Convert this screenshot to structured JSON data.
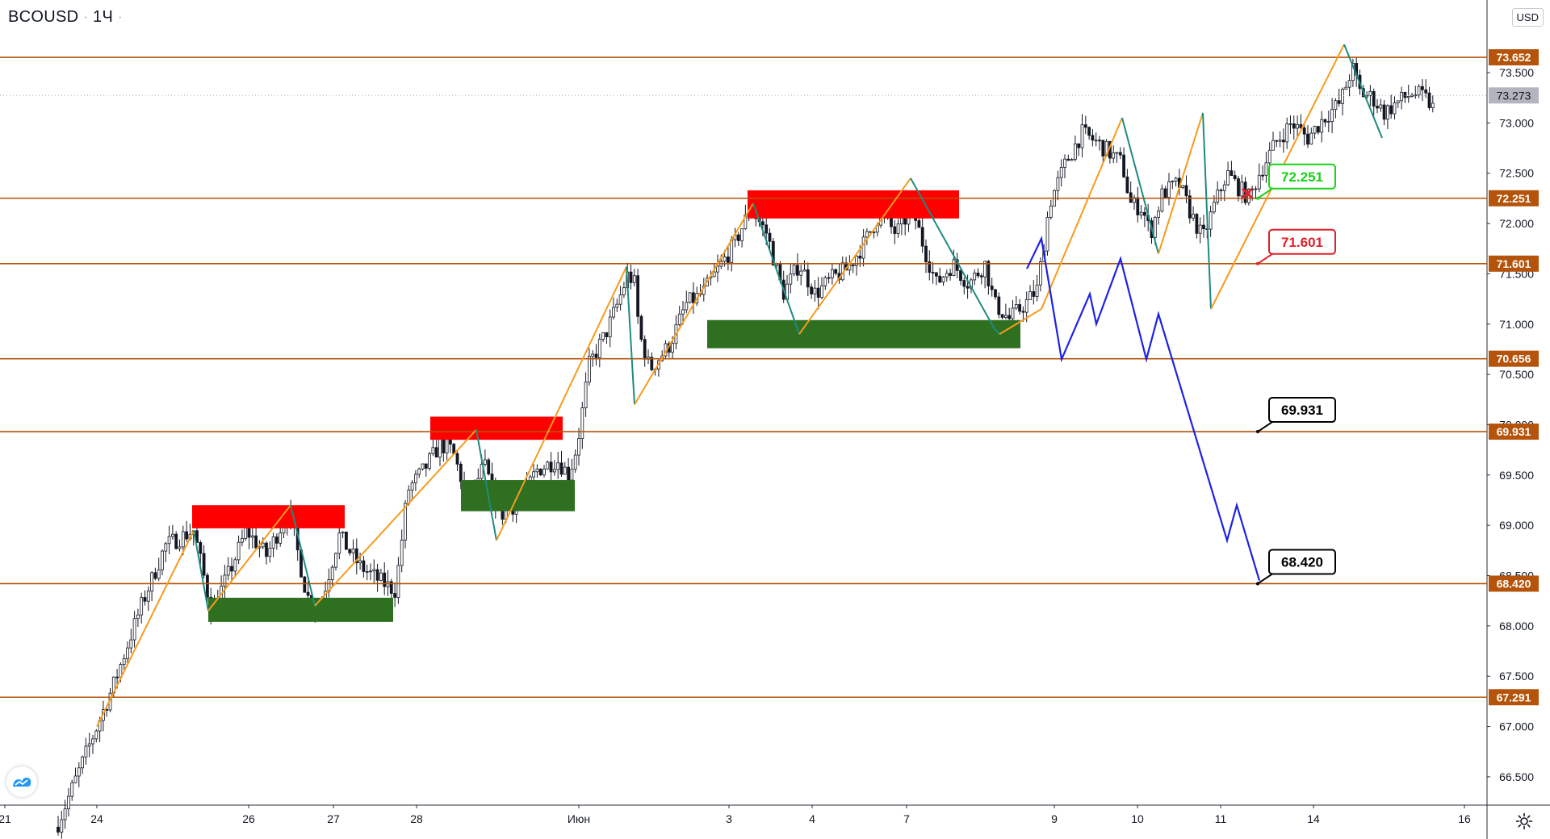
{
  "symbol": {
    "name": "BCOUSD",
    "interval": "1Ч"
  },
  "currency": "USD",
  "colors": {
    "level": "#b45309",
    "zigzag_up": "#f89a1c",
    "zigzag_down": "#1f8a80",
    "forecast": "#1e22e6",
    "resist_zone": "#ff0000",
    "support_zone": "#2e7020",
    "candle": "#131722",
    "bull_tag": "#19d119",
    "bear_tag": "#e0202a",
    "target_tag": "#000000",
    "current_price_tag": "#b2b5be"
  },
  "chart_data": {
    "type": "candlestick",
    "y_range": [
      66.2,
      74.4
    ],
    "y_ticks": [
      "73.500",
      "73.000",
      "72.500",
      "72.000",
      "71.500",
      "71.000",
      "70.500",
      "70.000",
      "69.500",
      "69.000",
      "68.500",
      "68.000",
      "67.500",
      "67.000",
      "66.500"
    ],
    "x_ticks": [
      "21",
      "24",
      "26",
      "27",
      "28",
      "Июн",
      "3",
      "4",
      "7",
      "9",
      "10",
      "11",
      "14",
      "16"
    ],
    "levels": [
      73.652,
      72.251,
      71.601,
      70.656,
      69.931,
      68.42,
      67.291
    ],
    "level_labels": [
      "73.652",
      "72.251",
      "71.601",
      "70.656",
      "69.931",
      "68.420",
      "67.291"
    ],
    "current_price": {
      "label": "73.273",
      "value": 73.273
    },
    "annotations": [
      {
        "text": "72.251",
        "value": 72.251,
        "style": "bull"
      },
      {
        "text": "71.601",
        "value": 71.601,
        "style": "bear"
      },
      {
        "text": "69.931",
        "value": 69.931,
        "style": "target"
      },
      {
        "text": "68.420",
        "value": 68.42,
        "style": "target"
      }
    ],
    "resistance_zones": [
      {
        "from": 68.97,
        "to": 69.2
      },
      {
        "from": 69.85,
        "to": 70.08
      },
      {
        "from": 72.05,
        "to": 72.33
      }
    ],
    "support_zones": [
      {
        "from": 68.04,
        "to": 68.28
      },
      {
        "from": 69.14,
        "to": 69.45
      },
      {
        "from": 70.76,
        "to": 71.04
      }
    ]
  }
}
